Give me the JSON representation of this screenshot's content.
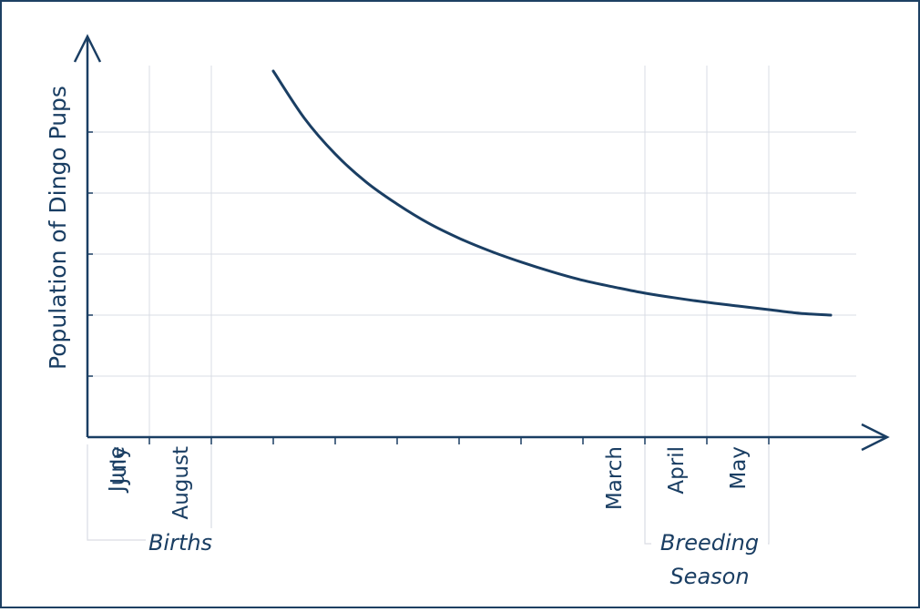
{
  "colors": {
    "ink": "#1a3e63",
    "grid": "#d9dce4",
    "border": "#1d4063",
    "background": "#ffffff"
  },
  "chart_data": {
    "type": "line",
    "title": "",
    "xlabel": "",
    "ylabel": "Population of Dingo Pups",
    "categories": [
      "June",
      "July",
      "August",
      "",
      "",
      "",
      "",
      "",
      "",
      "March",
      "April",
      "May"
    ],
    "x_labels_shown": [
      "June",
      "July",
      "August",
      "March",
      "April",
      "May"
    ],
    "grid": true,
    "ylim": [
      0,
      6
    ],
    "series": [
      {
        "x": [
          3.0,
          3.5,
          4.0,
          4.5,
          5.0,
          5.5,
          6.0,
          6.5,
          7.0,
          7.5,
          8.0,
          8.5,
          9.0,
          9.5,
          10.0,
          10.5,
          11.0,
          11.5,
          12.0
        ],
        "values": [
          6.0,
          5.23,
          4.64,
          4.18,
          3.82,
          3.51,
          3.26,
          3.05,
          2.87,
          2.71,
          2.57,
          2.46,
          2.36,
          2.28,
          2.21,
          2.15,
          2.09,
          2.03,
          2.0
        ]
      }
    ],
    "annotations": [
      {
        "label": "Births",
        "from": "June",
        "to": "August"
      },
      {
        "label": "Breeding Season",
        "lines": [
          "Breeding",
          "Season"
        ],
        "from": "March",
        "to": "May"
      }
    ]
  }
}
